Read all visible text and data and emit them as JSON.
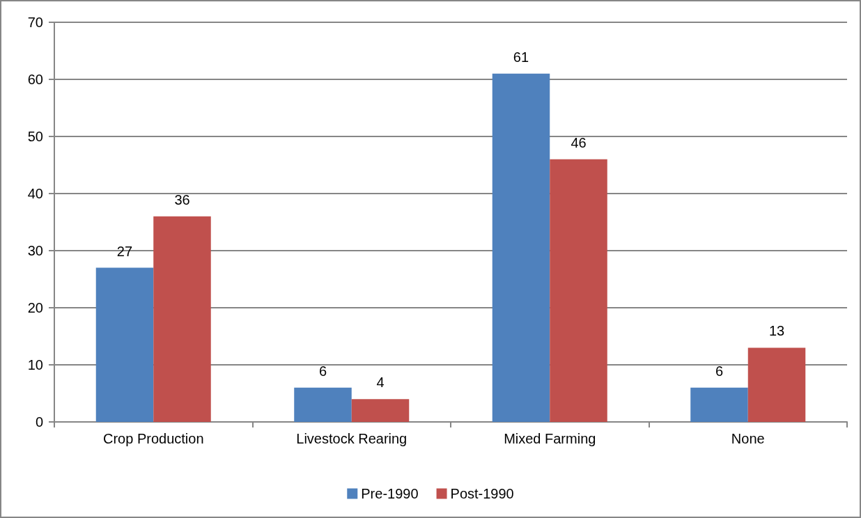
{
  "chart_data": {
    "type": "bar",
    "categories": [
      "Crop Production",
      "Livestock Rearing",
      "Mixed Farming",
      "None"
    ],
    "series": [
      {
        "name": "Pre-1990",
        "color": "#4f81bd",
        "values": [
          27,
          6,
          61,
          6
        ]
      },
      {
        "name": "Post-1990",
        "color": "#c0504d",
        "values": [
          36,
          4,
          46,
          13
        ]
      }
    ],
    "ylim": [
      0,
      70
    ],
    "yticks": [
      0,
      10,
      20,
      30,
      40,
      50,
      60,
      70
    ],
    "grid": "y",
    "legend": "bottom",
    "data_labels": true
  }
}
